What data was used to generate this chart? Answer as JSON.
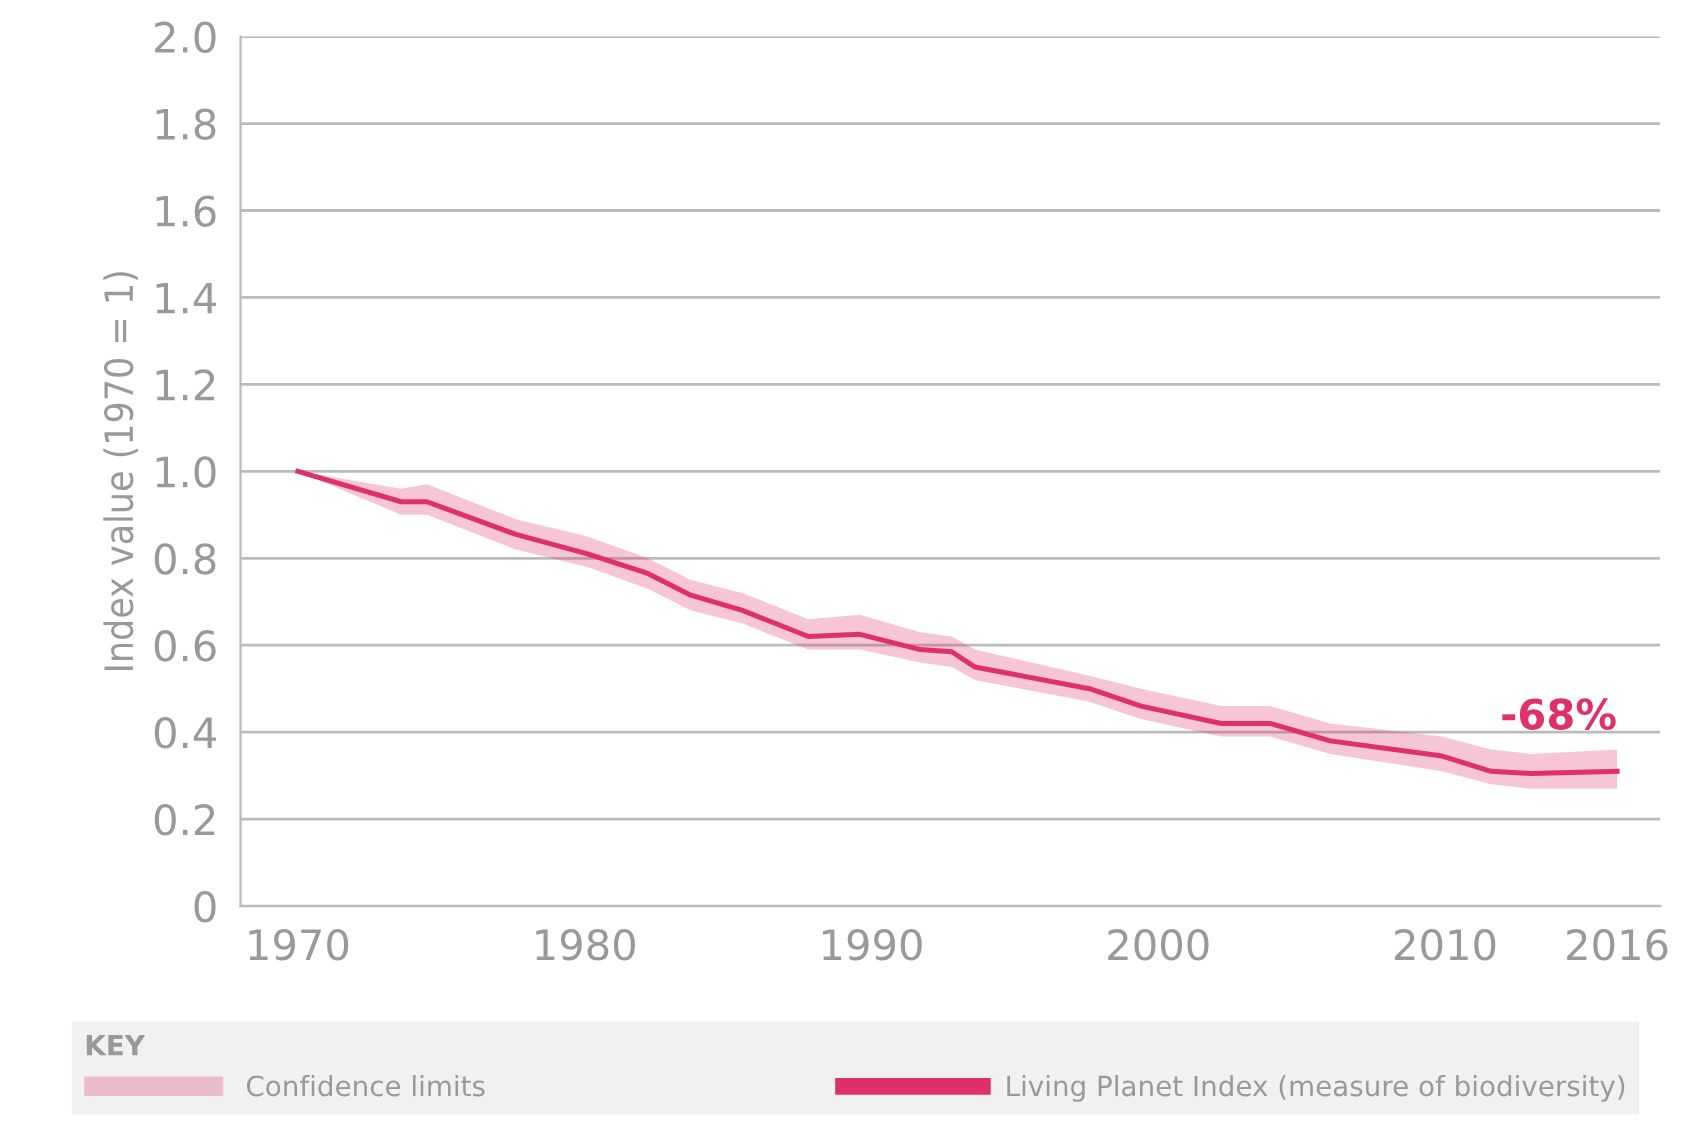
{
  "chart_data": {
    "type": "line",
    "ylabel": "Index value (1970 = 1)",
    "legend_title": "KEY",
    "x": [
      1970,
      1973.6,
      1974.5,
      1977.6,
      1980.1,
      1982.2,
      1983.7,
      1985.5,
      1987.8,
      1989.6,
      1991.7,
      1992.8,
      1993.6,
      1997.6,
      1999.4,
      2002.2,
      2003.9,
      2006,
      2009.9,
      2011.6,
      2013,
      2016
    ],
    "series": [
      {
        "name": "Living Planet Index (measure of biodiversity)",
        "color": "#e0306a",
        "values": [
          1.0,
          0.93,
          0.93,
          0.855,
          0.81,
          0.765,
          0.715,
          0.68,
          0.62,
          0.625,
          0.59,
          0.585,
          0.55,
          0.5,
          0.46,
          0.42,
          0.42,
          0.38,
          0.345,
          0.31,
          0.305,
          0.31
        ],
        "lower": [
          1.0,
          0.9,
          0.9,
          0.82,
          0.78,
          0.73,
          0.68,
          0.65,
          0.59,
          0.59,
          0.56,
          0.55,
          0.52,
          0.47,
          0.43,
          0.39,
          0.39,
          0.35,
          0.31,
          0.28,
          0.27,
          0.27
        ],
        "upper": [
          1.0,
          0.96,
          0.97,
          0.89,
          0.85,
          0.8,
          0.75,
          0.72,
          0.66,
          0.67,
          0.63,
          0.62,
          0.59,
          0.53,
          0.5,
          0.46,
          0.46,
          0.42,
          0.39,
          0.36,
          0.35,
          0.36
        ]
      }
    ],
    "annotations": [
      {
        "text": "-68%",
        "x": 2016,
        "y": 0.31
      },
      "Confidence limits"
    ],
    "xlim": [
      1968,
      2017.5
    ],
    "xticks": [
      1970,
      1980,
      1990,
      2000,
      2010,
      2016
    ],
    "ylim": [
      0,
      2
    ],
    "yticks": [
      0,
      {
        "value": 0.2,
        "label": "0.2"
      },
      {
        "value": 0.4,
        "label": "0.4"
      },
      {
        "value": 0.6,
        "label": "0.6"
      },
      {
        "value": 0.8,
        "label": "0.8"
      },
      {
        "value": 1.0,
        "label": "1.0"
      },
      {
        "value": 1.2,
        "label": "1.2"
      },
      {
        "value": 1.4,
        "label": "1.4"
      },
      {
        "value": 1.6,
        "label": "1.6"
      },
      {
        "value": 1.8,
        "label": "1.8"
      },
      {
        "value": 2.0,
        "label": "2.0"
      }
    ],
    "grid": "y",
    "legend": "bottom",
    "line_style": "solid",
    "marker": "none"
  }
}
